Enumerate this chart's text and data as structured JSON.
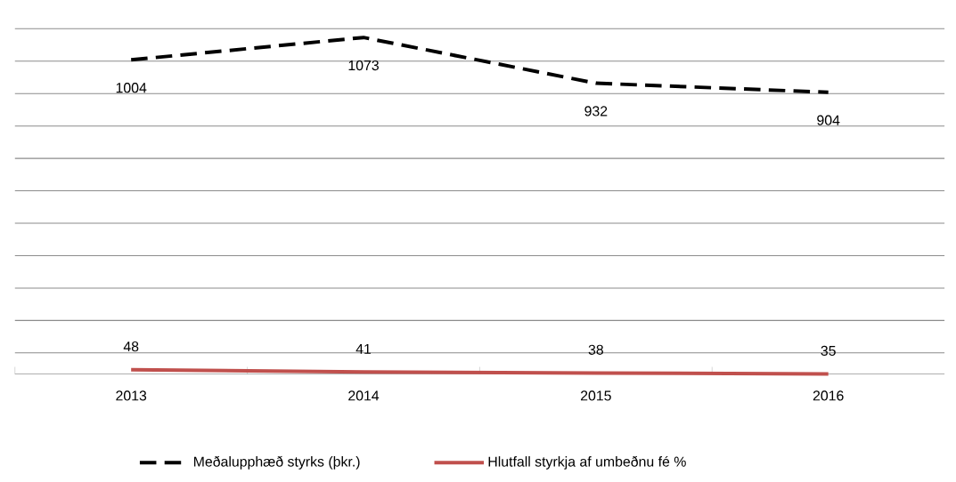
{
  "chart_data": {
    "type": "line",
    "categories": [
      "2013",
      "2014",
      "2015",
      "2016"
    ],
    "series": [
      {
        "name": "Meðalupphæð styrks (þkr.)",
        "color": "#000000",
        "line_style": "dashed",
        "values": [
          1004,
          1073,
          932,
          904
        ]
      },
      {
        "name": "Hlutfall styrkja af umbeðnu fé %",
        "color": "#c0504d",
        "line_style": "solid",
        "values": [
          48,
          41,
          38,
          35
        ]
      }
    ],
    "grid": "y",
    "tick_labels": "x",
    "data_labels": true,
    "legend": "bottom",
    "marker": "none"
  }
}
